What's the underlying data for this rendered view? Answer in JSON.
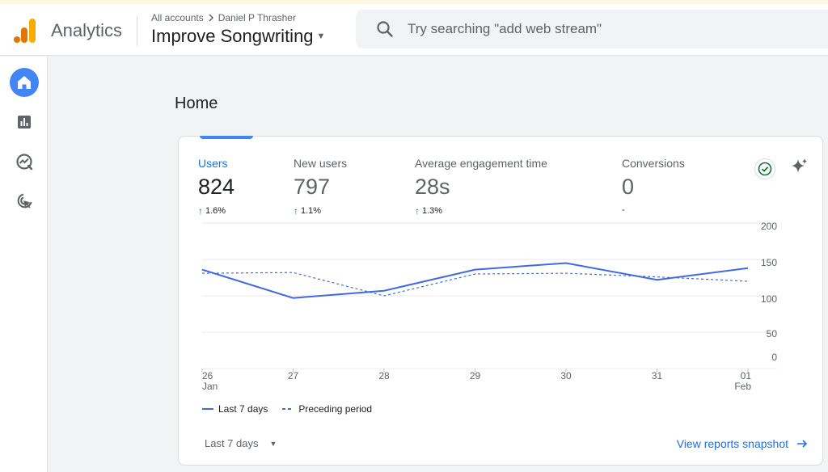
{
  "header": {
    "app_name": "Analytics",
    "breadcrumb": {
      "root": "All accounts",
      "account": "Daniel P Thrasher"
    },
    "property": "Improve Songwriting",
    "search_placeholder": "Try searching \"add web stream\""
  },
  "sidebar": {
    "items": [
      {
        "name": "home",
        "icon": "home-icon",
        "active": true
      },
      {
        "name": "reports",
        "icon": "bar-chart-icon",
        "active": false
      },
      {
        "name": "explore",
        "icon": "explore-icon",
        "active": false
      },
      {
        "name": "advertising",
        "icon": "cursor-target-icon",
        "active": false
      }
    ]
  },
  "page": {
    "title": "Home"
  },
  "metrics": [
    {
      "label": "Users",
      "value": "824",
      "delta": "1.6%",
      "active": true
    },
    {
      "label": "New users",
      "value": "797",
      "delta": "1.1%",
      "active": false
    },
    {
      "label": "Average engagement time",
      "value": "28s",
      "delta": "1.3%",
      "active": false
    },
    {
      "label": "Conversions",
      "value": "0",
      "delta": "-",
      "active": false
    }
  ],
  "chart_data": {
    "type": "line",
    "x": [
      "26 Jan",
      "27",
      "28",
      "29",
      "30",
      "31",
      "01 Feb"
    ],
    "x_ticks": [
      [
        "26",
        "Jan"
      ],
      [
        "27"
      ],
      [
        "28"
      ],
      [
        "29"
      ],
      [
        "30"
      ],
      [
        "31"
      ],
      [
        "01",
        "Feb"
      ]
    ],
    "series": [
      {
        "name": "Last 7 days",
        "style": "solid",
        "values": [
          136,
          97,
          107,
          136,
          145,
          122,
          138
        ]
      },
      {
        "name": "Preceding period",
        "style": "dashed",
        "values": [
          131,
          132,
          100,
          130,
          131,
          126,
          120
        ]
      }
    ],
    "ylim": [
      0,
      200
    ],
    "y_ticks": [
      "200",
      "150",
      "100",
      "50",
      "0"
    ],
    "grid": true,
    "legend": "bottom-left",
    "color": "#4169e1"
  },
  "footer": {
    "range_label": "Last 7 days",
    "snapshot_label": "View reports snapshot"
  },
  "colors": {
    "accent": "#1a73e8",
    "positive": "#137333",
    "series": "#4169e1"
  }
}
